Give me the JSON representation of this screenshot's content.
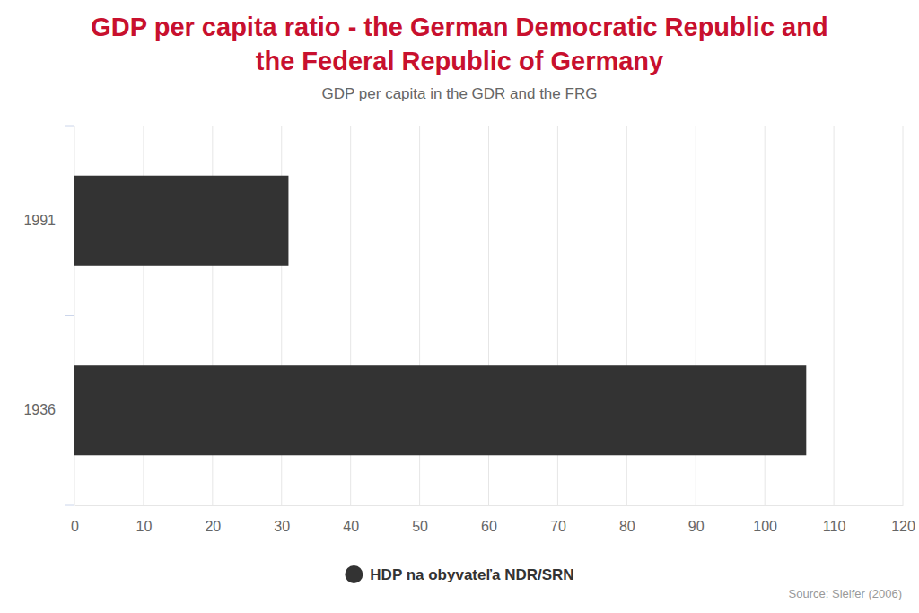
{
  "chart_data": {
    "type": "bar",
    "orientation": "horizontal",
    "title": [
      "GDP per capita ratio - the German Democratic Republic and",
      "the Federal Republic of Germany"
    ],
    "subtitle": "GDP per capita in the GDR and the FRG",
    "categories": [
      "1991",
      "1936"
    ],
    "series": [
      {
        "name": "HDP na obyvateľa NDR/SRN",
        "color": "#333333",
        "values": [
          31,
          106
        ]
      }
    ],
    "xlim": [
      0,
      120
    ],
    "xticks": [
      0,
      10,
      20,
      30,
      40,
      50,
      60,
      70,
      80,
      90,
      100,
      110,
      120
    ],
    "grid": true,
    "legend": "bottom",
    "source": "Source: Sleifer (2006)"
  }
}
